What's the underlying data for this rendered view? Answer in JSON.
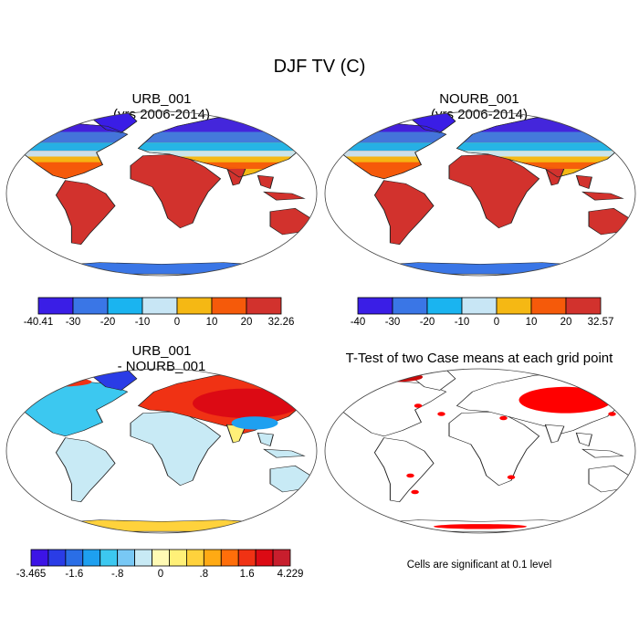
{
  "title": "DJF TV (C)",
  "panels": [
    {
      "title_line1": "URB_001",
      "title_line2": "(yrs 2006-2014)"
    },
    {
      "title_line1": "NOURB_001",
      "title_line2": "(yrs 2006-2014)"
    },
    {
      "title_line1": "URB_001",
      "title_line2": "- NOURB_001"
    },
    {
      "title_line1": "T-Test of two Case means at each grid point",
      "title_line2": ""
    }
  ],
  "colorbars": [
    {
      "labels": [
        "-40.41",
        "-30",
        "-20",
        "-10",
        "0",
        "10",
        "20",
        "32.26"
      ],
      "colors": [
        "#3a1ee6",
        "#3a76e6",
        "#1ab4f0",
        "#c8e6f5",
        "#f5b814",
        "#f55a0a",
        "#d2322d"
      ]
    },
    {
      "labels": [
        "-40",
        "-30",
        "-20",
        "-10",
        "0",
        "10",
        "20",
        "32.57"
      ],
      "colors": [
        "#3a1ee6",
        "#3a76e6",
        "#1ab4f0",
        "#c8e6f5",
        "#f5b814",
        "#f55a0a",
        "#d2322d"
      ]
    },
    {
      "labels": [
        "-3.465",
        "-1.6",
        "-.8",
        "0",
        ".8",
        "1.6",
        "4.229"
      ],
      "colors": [
        "#3c14e6",
        "#2a3ce6",
        "#2a6ee6",
        "#1ea0f0",
        "#3cc8f0",
        "#78c8f5",
        "#c8eaf5",
        "#fffab4",
        "#fff078",
        "#ffd23c",
        "#ffaa14",
        "#ff6e0a",
        "#f03214",
        "#dc0a14",
        "#c81e2d"
      ]
    }
  ],
  "significance_note": "Cells are significant at 0.1 level",
  "colors": {
    "cold_deep": "#3a1ee6",
    "warm_deep": "#d2322d",
    "significant": "#ff0000"
  }
}
